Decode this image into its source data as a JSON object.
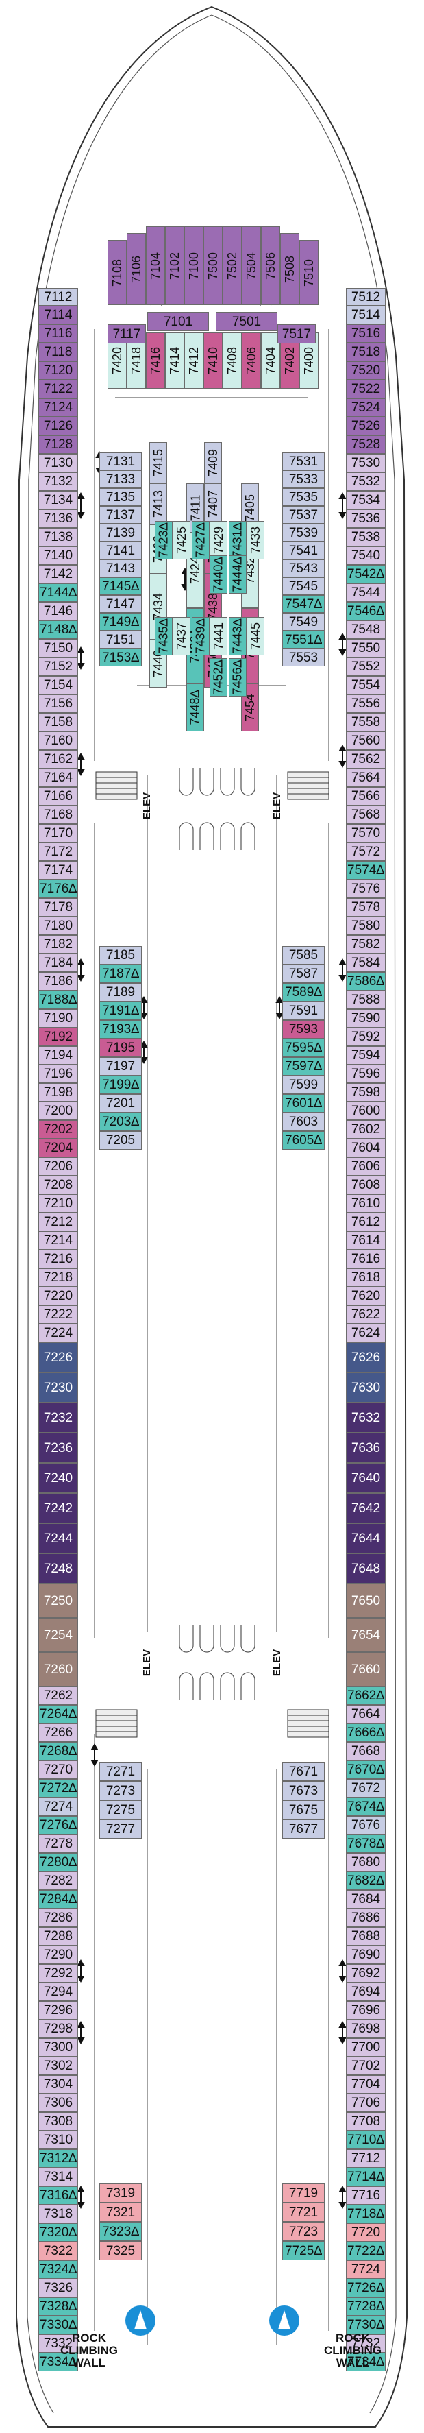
{
  "legend_colors": {
    "purple_dark": "#4a2f6e",
    "purple_mid": "#9b6cb3",
    "lavender": "#d6c3e2",
    "pink": "#c95c93",
    "light_pink": "#f2c6d8",
    "blue_gray": "#c7cde4",
    "slate": "#45588a",
    "teal": "#58c3b8",
    "light_teal": "#cfeee9",
    "mauve": "#9a8077",
    "salmon": "#f0a8b0"
  },
  "labels": {
    "elev_left_top": "ELEV",
    "elev_right_top": "ELEV",
    "elev_left_bottom": "ELEV",
    "elev_right_bottom": "ELEV",
    "rock_left_line1": "ROCK",
    "rock_left_line2": "CLIMBING",
    "rock_left_line3": "WALL",
    "rock_right_line1": "ROCK",
    "rock_right_line2": "CLIMBING",
    "rock_right_line3": "WALL"
  },
  "cabins": {
    "bow": [
      "7108",
      "7106",
      "7104",
      "7102",
      "7100",
      "7500",
      "7502",
      "7504",
      "7506",
      "7508",
      "7510"
    ],
    "bow_row2": [
      "7420",
      "7418",
      "7416",
      "7414",
      "7412",
      "7410",
      "7408",
      "7406",
      "7404",
      "7402",
      "7400"
    ],
    "forward_labels": [
      "7101",
      "7501",
      "7117",
      "7517"
    ],
    "left_outer": [
      "7112",
      "7114",
      "7116",
      "7118",
      "7120",
      "7122",
      "7124",
      "7126",
      "7128",
      "7130",
      "7132",
      "7134",
      "7136",
      "7138",
      "7140",
      "7142",
      "7144∆",
      "7146",
      "7148∆",
      "7150",
      "7152",
      "7154",
      "7156",
      "7158",
      "7160",
      "7162",
      "7164",
      "7166",
      "7168",
      "7170",
      "7172",
      "7174",
      "7176∆",
      "7178",
      "7180",
      "7182",
      "7184",
      "7186",
      "7188∆",
      "7190",
      "7192",
      "7194",
      "7196",
      "7198",
      "7200",
      "7202",
      "7204",
      "7206",
      "7208",
      "7210",
      "7212",
      "7214",
      "7216",
      "7218",
      "7220",
      "7222",
      "7224",
      "7226",
      "7230",
      "7232",
      "7236",
      "7240",
      "7242",
      "7244",
      "7248",
      "7250",
      "7254",
      "7260",
      "7262",
      "7264∆",
      "7266",
      "7268∆",
      "7270",
      "7272∆",
      "7274",
      "7276∆",
      "7278",
      "7280∆",
      "7282",
      "7284∆",
      "7286",
      "7288",
      "7290",
      "7292",
      "7294",
      "7296",
      "7298",
      "7300",
      "7302",
      "7304",
      "7306",
      "7308",
      "7310",
      "7312∆",
      "7314",
      "7316∆",
      "7318",
      "7320∆",
      "7322",
      "7324∆",
      "7326",
      "7328∆",
      "7330∆",
      "7332",
      "7334∆"
    ],
    "right_outer": [
      "7512",
      "7514",
      "7516",
      "7518",
      "7520",
      "7522",
      "7524",
      "7526",
      "7528",
      "7530",
      "7532",
      "7534",
      "7536",
      "7538",
      "7540",
      "7542∆",
      "7544",
      "7546∆",
      "7548",
      "7550",
      "7552",
      "7554",
      "7556",
      "7558",
      "7560",
      "7562",
      "7564",
      "7566",
      "7568",
      "7570",
      "7572",
      "7574∆",
      "7576",
      "7578",
      "7580",
      "7582",
      "7584",
      "7586∆",
      "7588",
      "7590",
      "7592",
      "7594",
      "7596",
      "7598",
      "7600",
      "7602",
      "7604",
      "7606",
      "7608",
      "7610",
      "7612",
      "7614",
      "7616",
      "7618",
      "7620",
      "7622",
      "7624",
      "7626",
      "7630",
      "7632",
      "7636",
      "7640",
      "7642",
      "7644",
      "7648",
      "7650",
      "7654",
      "7660",
      "7662∆",
      "7664",
      "7666∆",
      "7668",
      "7670∆",
      "7672",
      "7674∆",
      "7676",
      "7678∆",
      "7680",
      "7682∆",
      "7684",
      "7686",
      "7688",
      "7690",
      "7692",
      "7694",
      "7696",
      "7698",
      "7700",
      "7702",
      "7704",
      "7706",
      "7708",
      "7710∆",
      "7712",
      "7714∆",
      "7716",
      "7718∆",
      "7720",
      "7722∆",
      "7724",
      "7726∆",
      "7728∆",
      "7730∆",
      "7732",
      "7734∆"
    ],
    "left_inner_top": [
      "7131",
      "7133",
      "7135",
      "7137",
      "7139",
      "7141",
      "7143",
      "7145∆",
      "7147",
      "7149∆",
      "7151",
      "7153∆"
    ],
    "right_inner_top": [
      "7531",
      "7533",
      "7535",
      "7537",
      "7539",
      "7541",
      "7543",
      "7545",
      "7547∆",
      "7549",
      "7551∆",
      "7553"
    ],
    "center_col1": [
      "7415",
      "7413",
      "7422",
      "7434",
      "7446"
    ],
    "center_col2": [
      "7411",
      "7424",
      "7436∆",
      "7448∆"
    ],
    "center_col3": [
      "7409",
      "7407",
      "7430",
      "7438",
      "7450"
    ],
    "center_col4": [
      "7405",
      "7432",
      "7442",
      "7454"
    ],
    "center_mid": [
      "7423∆",
      "7425",
      "7427∆",
      "7429",
      "7431∆",
      "7433",
      "7435∆",
      "7437",
      "7439∆",
      "7441",
      "7443∆",
      "7445",
      "7440∆",
      "7444∆",
      "7452∆",
      "7456∆"
    ],
    "left_inner_mid": [
      "7185",
      "7187∆",
      "7189",
      "7191∆",
      "7193∆",
      "7195",
      "7197",
      "7199∆",
      "7201",
      "7203∆",
      "7205"
    ],
    "right_inner_mid": [
      "7585",
      "7587",
      "7589∆",
      "7591",
      "7593",
      "7595∆",
      "7597∆",
      "7599",
      "7601∆",
      "7603",
      "7605∆"
    ],
    "left_inner_aft": [
      "7271",
      "7273",
      "7275",
      "7277"
    ],
    "right_inner_aft": [
      "7671",
      "7673",
      "7675",
      "7677"
    ],
    "left_aft_block": [
      "7319",
      "7321",
      "7323∆",
      "7325"
    ],
    "right_aft_block": [
      "7719",
      "7721",
      "7723",
      "7725∆"
    ]
  }
}
